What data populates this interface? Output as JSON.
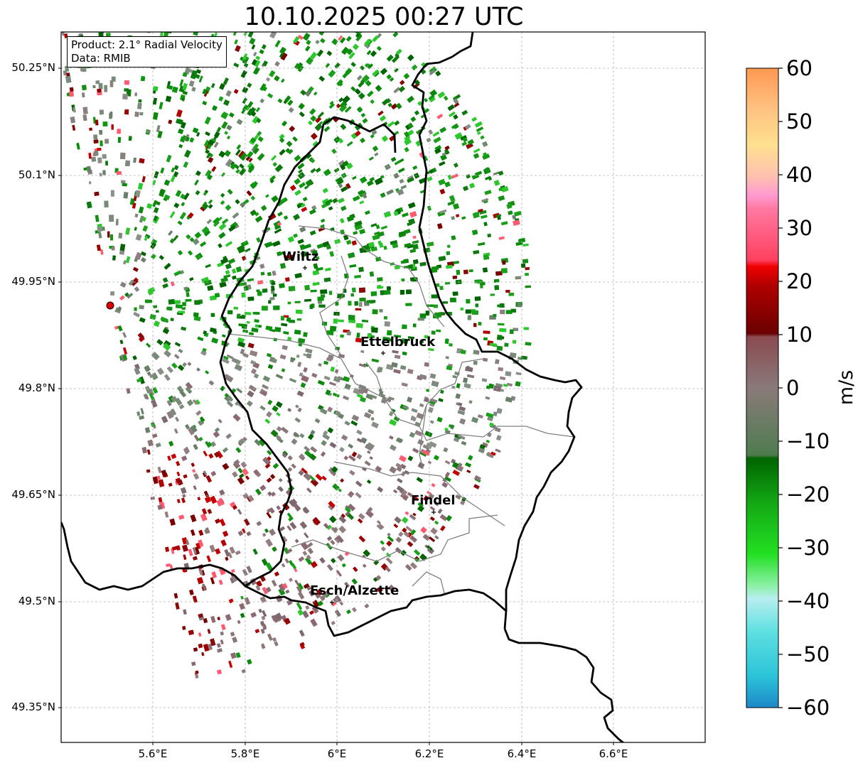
{
  "title": "10.10.2025 00:27 UTC",
  "info": {
    "product": "Product: 2.1° Radial Velocity",
    "data": "Data: RMIB"
  },
  "lat_ticks": [
    "50.25°N",
    "50.1°N",
    "49.95°N",
    "49.8°N",
    "49.65°N",
    "49.5°N",
    "49.35°N"
  ],
  "lon_ticks": [
    "5.6°E",
    "5.8°E",
    "6°E",
    "6.2°E",
    "6.4°E",
    "6.6°E"
  ],
  "cities": [
    {
      "name": "Wiltz"
    },
    {
      "name": "Ettelbruck"
    },
    {
      "name": "Findel"
    },
    {
      "name": "Esch/Alzette"
    }
  ],
  "colorbar": {
    "label": "m/s",
    "min": -60,
    "max": 60,
    "ticks": [
      "60",
      "50",
      "40",
      "30",
      "20",
      "10",
      "0",
      "−10",
      "−20",
      "−30",
      "−40",
      "−50",
      "−60"
    ],
    "stops": [
      "#1e88c8",
      "#2bc4d8",
      "#5fe0e0",
      "#b8eef0",
      "#8ef0a8",
      "#22e022",
      "#14a814",
      "#006400",
      "#5a8a5a",
      "#8a7a7a",
      "#8a4a50",
      "#7a0000",
      "#c00000",
      "#f00000",
      "#ff5a70",
      "#ff90c8",
      "#ffc8a8",
      "#ffe090",
      "#ffb878",
      "#ff9850"
    ]
  }
}
